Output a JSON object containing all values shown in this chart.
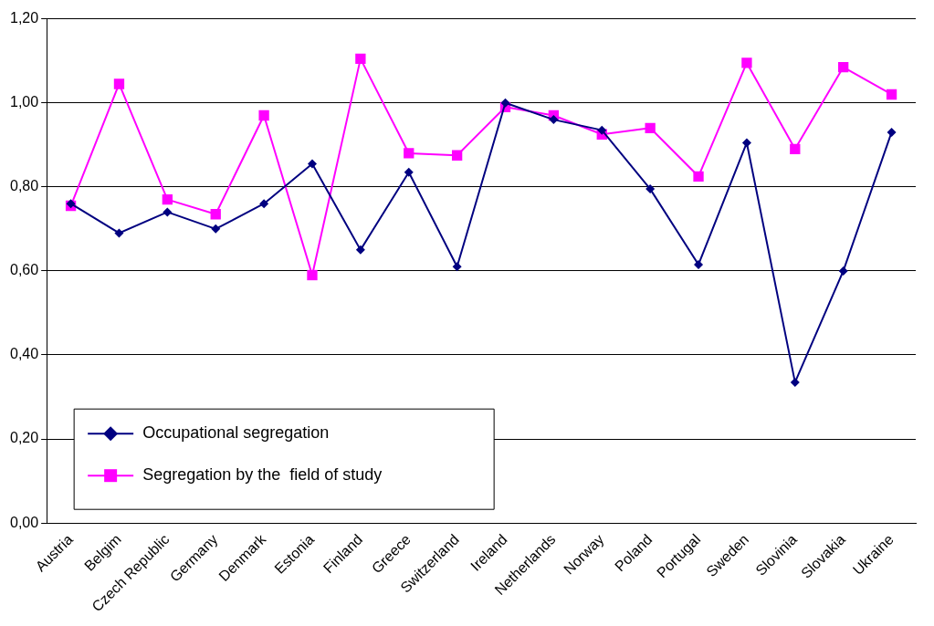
{
  "chart_data": {
    "type": "line",
    "categories": [
      "Austria",
      "Belgim",
      "Czech Republic",
      "Germany",
      "Denmark",
      "Estonia",
      "Finland",
      "Greece",
      "Switzerland",
      "Ireland",
      "Netherlands",
      "Norway",
      "Poland",
      "Portugal",
      "Sweden",
      "Slovinia",
      "Slovakia",
      "Ukraine"
    ],
    "series": [
      {
        "name": "Occupational segregation",
        "color": "#000080",
        "marker": "diamond",
        "values": [
          0.76,
          0.69,
          0.74,
          0.7,
          0.76,
          0.855,
          0.65,
          0.835,
          0.61,
          1.0,
          0.96,
          0.935,
          0.795,
          0.615,
          0.905,
          0.335,
          0.6,
          0.93
        ]
      },
      {
        "name": "Segregation by the  field of study",
        "color": "#ff00ff",
        "marker": "square",
        "values": [
          0.755,
          1.045,
          0.77,
          0.735,
          0.97,
          0.59,
          1.105,
          0.88,
          0.875,
          0.99,
          0.97,
          0.925,
          0.94,
          0.825,
          1.095,
          0.89,
          1.085,
          1.02
        ]
      }
    ],
    "ylim": [
      0,
      1.2
    ],
    "yticks": [
      {
        "value": 0,
        "label": "0,00"
      },
      {
        "value": 0.2,
        "label": "0,20"
      },
      {
        "value": 0.4,
        "label": "0,40"
      },
      {
        "value": 0.6,
        "label": "0,60"
      },
      {
        "value": 0.8,
        "label": "0,80"
      },
      {
        "value": 1.0,
        "label": "1,00"
      },
      {
        "value": 1.2,
        "label": "1,20"
      }
    ],
    "grid": "y",
    "legend": "bottom left",
    "line_style": "solid"
  }
}
